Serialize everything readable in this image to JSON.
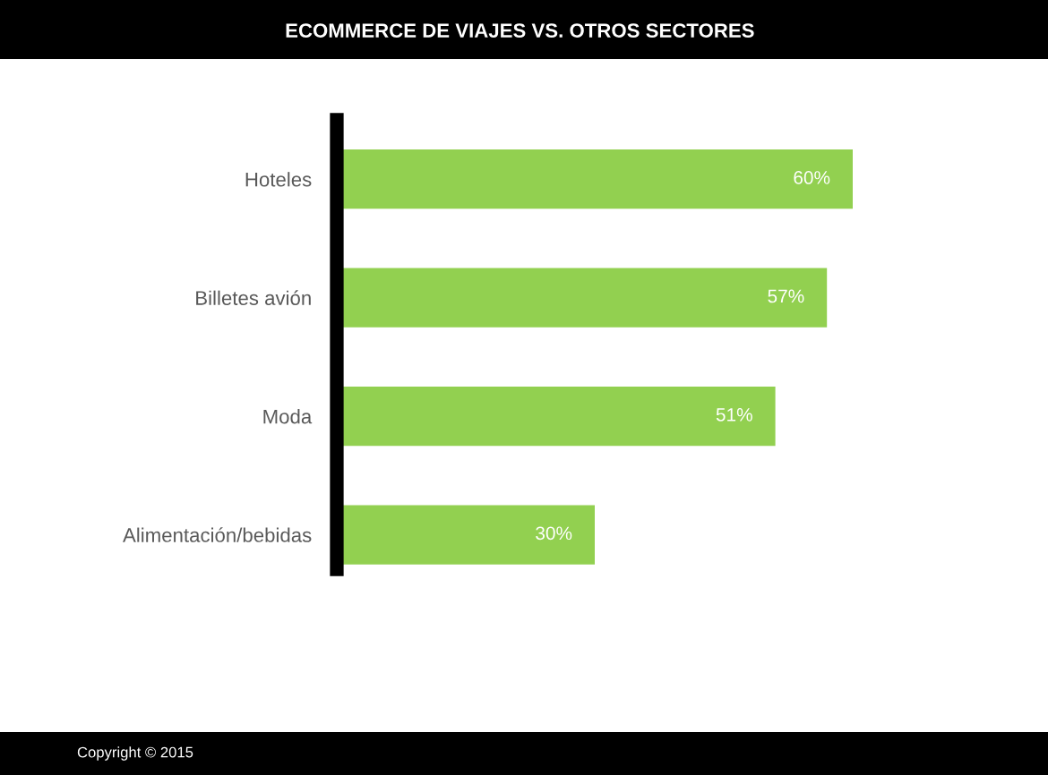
{
  "chart_data": {
    "type": "bar",
    "orientation": "horizontal",
    "title": "ECOMMERCE DE VIAJES VS. OTROS SECTORES",
    "categories": [
      "Hoteles",
      "Billetes avión",
      "Moda",
      "Alimentación/bebidas"
    ],
    "values": [
      60,
      57,
      51,
      30
    ],
    "value_labels": [
      "60%",
      "57%",
      "51%",
      "30%"
    ],
    "color": "#92d050",
    "xlim": [
      0,
      60
    ],
    "tick_labels": "y",
    "annotations": [
      "Copyright © 2015"
    ]
  }
}
